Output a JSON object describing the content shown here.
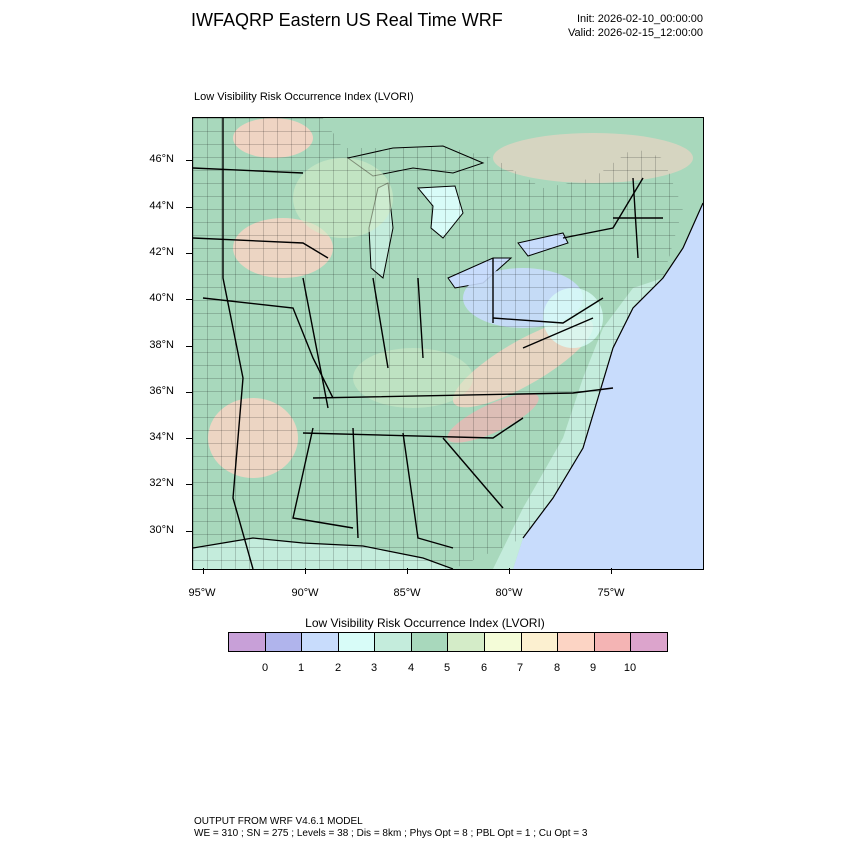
{
  "header": {
    "title": "IWFAQRP Eastern US Real Time WRF",
    "init": "Init: 2026-02-10_00:00:00",
    "valid": "Valid: 2026-02-15_12:00:00"
  },
  "map": {
    "title": "Low Visibility Risk Occurrence Index   (LVORI)",
    "lat_labels": [
      "46°N",
      "44°N",
      "42°N",
      "40°N",
      "38°N",
      "36°N",
      "34°N",
      "32°N",
      "30°N"
    ],
    "lon_labels": [
      "95°W",
      "90°W",
      "85°W",
      "80°W",
      "75°W"
    ]
  },
  "colorbar": {
    "title": "Low Visibility Risk Occurrence Index  (LVORI)",
    "labels": [
      "0",
      "1",
      "2",
      "3",
      "4",
      "5",
      "6",
      "7",
      "8",
      "9",
      "10"
    ],
    "colors": [
      "#c8a0d8",
      "#b0b4ec",
      "#c8dcfc",
      "#d8fcf8",
      "#c4ecdc",
      "#a8d8bc",
      "#d4ecc8",
      "#f4fcd8",
      "#fcf0d0",
      "#fcd4c4",
      "#f4b4b4",
      "#dca4cc"
    ]
  },
  "footer": {
    "line1": "OUTPUT FROM WRF V4.6.1 MODEL",
    "line2": "WE = 310 ; SN = 275 ; Levels = 38 ; Dis = 8km ; Phys Opt = 8 ; PBL Opt = 1 ; Cu Opt = 3"
  }
}
